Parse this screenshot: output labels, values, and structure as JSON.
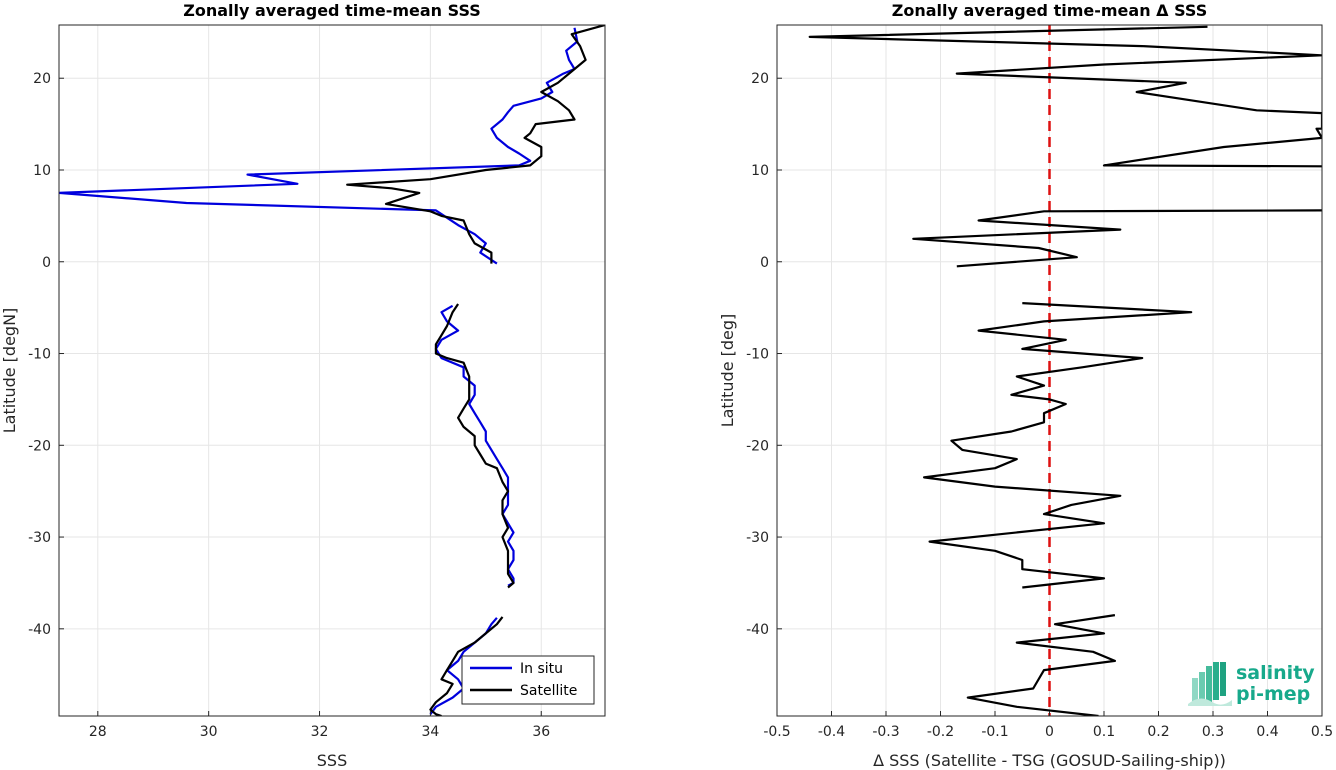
{
  "chart_data": [
    {
      "type": "line",
      "title": "Zonally averaged time-mean SSS",
      "xlabel": "SSS",
      "ylabel": "Latitude [degN]",
      "xlim": [
        27.3,
        37.15
      ],
      "ylim": [
        -49.5,
        25.8
      ],
      "xticks": [
        28,
        30,
        32,
        34,
        36
      ],
      "yticks": [
        -40,
        -30,
        -20,
        -10,
        0,
        10,
        20
      ],
      "grid": true,
      "legend": "bottom-right",
      "series": [
        {
          "name": "In situ",
          "color": "#0000dd",
          "segments": [
            [
              [
                36.6,
                25.5
              ],
              [
                36.65,
                24.0
              ],
              [
                36.45,
                23.0
              ],
              [
                36.5,
                22.0
              ],
              [
                36.6,
                21.0
              ],
              [
                36.4,
                20.5
              ],
              [
                36.1,
                19.5
              ],
              [
                36.2,
                18.5
              ],
              [
                36.0,
                17.8
              ],
              [
                35.5,
                17.0
              ],
              [
                35.4,
                16.3
              ],
              [
                35.3,
                15.5
              ],
              [
                35.1,
                14.5
              ],
              [
                35.2,
                13.5
              ],
              [
                35.4,
                12.5
              ],
              [
                35.6,
                11.8
              ],
              [
                35.8,
                11.0
              ],
              [
                35.6,
                10.5
              ],
              [
                30.7,
                9.5
              ],
              [
                31.6,
                8.5
              ],
              [
                27.3,
                7.5
              ],
              [
                29.6,
                6.4
              ],
              [
                34.1,
                5.6
              ],
              [
                34.5,
                4.0
              ],
              [
                34.8,
                3.0
              ],
              [
                35.0,
                2.0
              ],
              [
                34.9,
                1.0
              ],
              [
                35.2,
                -0.2
              ]
            ],
            [
              [
                34.4,
                -4.8
              ],
              [
                34.2,
                -5.5
              ],
              [
                34.3,
                -6.5
              ],
              [
                34.5,
                -7.5
              ],
              [
                34.2,
                -8.5
              ],
              [
                34.1,
                -9.5
              ],
              [
                34.2,
                -10.5
              ],
              [
                34.6,
                -11.5
              ],
              [
                34.6,
                -12.5
              ],
              [
                34.8,
                -13.5
              ],
              [
                34.8,
                -14.5
              ],
              [
                34.7,
                -15.5
              ],
              [
                34.8,
                -16.5
              ],
              [
                34.9,
                -17.5
              ],
              [
                35.0,
                -18.5
              ],
              [
                35.0,
                -19.5
              ],
              [
                35.1,
                -20.5
              ],
              [
                35.2,
                -21.5
              ],
              [
                35.3,
                -22.5
              ],
              [
                35.4,
                -23.5
              ],
              [
                35.4,
                -24.5
              ],
              [
                35.4,
                -25.5
              ],
              [
                35.4,
                -26.5
              ],
              [
                35.3,
                -27.5
              ],
              [
                35.4,
                -28.5
              ],
              [
                35.5,
                -29.5
              ],
              [
                35.4,
                -30.5
              ],
              [
                35.5,
                -31.5
              ],
              [
                35.5,
                -32.5
              ],
              [
                35.4,
                -33.5
              ],
              [
                35.5,
                -34.5
              ],
              [
                35.5,
                -35.0
              ],
              [
                35.4,
                -35.3
              ]
            ],
            [
              [
                35.2,
                -38.8
              ],
              [
                35.1,
                -39.5
              ],
              [
                35.0,
                -40.5
              ],
              [
                34.8,
                -41.5
              ],
              [
                34.6,
                -42.5
              ],
              [
                34.5,
                -43.5
              ],
              [
                34.3,
                -44.5
              ],
              [
                34.5,
                -45.5
              ],
              [
                34.6,
                -46.5
              ],
              [
                34.4,
                -47.5
              ],
              [
                34.1,
                -48.5
              ],
              [
                34.0,
                -49.3
              ]
            ]
          ]
        },
        {
          "name": "Satellite",
          "color": "#000000",
          "segments": [
            [
              [
                37.15,
                25.8
              ],
              [
                36.55,
                24.8
              ],
              [
                36.7,
                23.5
              ],
              [
                36.8,
                22.0
              ],
              [
                36.5,
                20.5
              ],
              [
                36.3,
                19.5
              ],
              [
                36.0,
                18.5
              ],
              [
                36.3,
                17.5
              ],
              [
                36.5,
                16.5
              ],
              [
                36.6,
                15.5
              ],
              [
                35.9,
                15.0
              ],
              [
                35.8,
                14.0
              ],
              [
                35.7,
                13.5
              ],
              [
                36.0,
                12.5
              ],
              [
                36.0,
                11.5
              ],
              [
                35.8,
                10.5
              ],
              [
                35.0,
                10.0
              ],
              [
                34.0,
                9.0
              ],
              [
                32.5,
                8.4
              ],
              [
                33.3,
                8.0
              ],
              [
                33.8,
                7.5
              ],
              [
                33.2,
                6.3
              ],
              [
                34.0,
                5.5
              ],
              [
                34.2,
                5.0
              ],
              [
                34.6,
                4.5
              ],
              [
                34.7,
                3.0
              ],
              [
                34.8,
                2.0
              ],
              [
                35.1,
                1.0
              ],
              [
                35.1,
                -0.2
              ]
            ],
            [
              [
                34.5,
                -4.6
              ],
              [
                34.4,
                -5.5
              ],
              [
                34.3,
                -7.0
              ],
              [
                34.2,
                -8.0
              ],
              [
                34.1,
                -9.0
              ],
              [
                34.1,
                -10.0
              ],
              [
                34.3,
                -10.5
              ],
              [
                34.6,
                -11.0
              ],
              [
                34.7,
                -12.5
              ],
              [
                34.7,
                -14.0
              ],
              [
                34.7,
                -15.0
              ],
              [
                34.6,
                -16.0
              ],
              [
                34.5,
                -17.0
              ],
              [
                34.6,
                -18.0
              ],
              [
                34.8,
                -19.0
              ],
              [
                34.8,
                -20.0
              ],
              [
                34.9,
                -21.0
              ],
              [
                35.0,
                -22.0
              ],
              [
                35.2,
                -22.5
              ],
              [
                35.3,
                -24.0
              ],
              [
                35.4,
                -25.0
              ],
              [
                35.3,
                -26.0
              ],
              [
                35.3,
                -27.5
              ],
              [
                35.4,
                -29.0
              ],
              [
                35.3,
                -30.0
              ],
              [
                35.4,
                -31.5
              ],
              [
                35.4,
                -33.0
              ],
              [
                35.4,
                -34.0
              ],
              [
                35.5,
                -35.0
              ],
              [
                35.4,
                -35.5
              ]
            ],
            [
              [
                35.3,
                -38.7
              ],
              [
                35.2,
                -39.5
              ],
              [
                35.0,
                -40.5
              ],
              [
                34.8,
                -41.5
              ],
              [
                34.5,
                -42.5
              ],
              [
                34.4,
                -43.5
              ],
              [
                34.3,
                -44.5
              ],
              [
                34.2,
                -45.5
              ],
              [
                34.4,
                -46.0
              ],
              [
                34.3,
                -47.0
              ],
              [
                34.1,
                -48.0
              ],
              [
                34.0,
                -48.8
              ],
              [
                34.1,
                -49.3
              ],
              [
                34.2,
                -49.5
              ]
            ]
          ]
        }
      ]
    },
    {
      "type": "line",
      "title": "Zonally averaged time-mean Δ SSS",
      "xlabel": "Δ SSS (Satellite - TSG (GOSUD-Sailing-ship))",
      "ylabel": "Latitude [deg]",
      "xlim": [
        -0.5,
        0.5
      ],
      "ylim": [
        -49.5,
        25.8
      ],
      "xticks": [
        -0.5,
        -0.4,
        -0.3,
        -0.2,
        -0.1,
        0,
        0.1,
        0.2,
        0.3,
        0.4,
        0.5
      ],
      "xtick_labels": [
        "-0.5",
        "-0.4",
        "-0.3",
        "-0.2",
        "-0.1",
        "0",
        "0.1",
        "0.2",
        "0.3",
        "0.4",
        "0.5"
      ],
      "yticks": [
        -40,
        -30,
        -20,
        -10,
        0,
        10,
        20
      ],
      "grid": true,
      "zero_line_color": "#dd1111",
      "series": [
        {
          "color": "#000000",
          "segments": [
            [
              [
                0.29,
                25.6
              ],
              [
                -0.44,
                24.5
              ],
              [
                0.17,
                23.5
              ],
              [
                0.5,
                22.5
              ],
              [
                0.1,
                21.5
              ],
              [
                -0.17,
                20.5
              ],
              [
                0.25,
                19.5
              ],
              [
                0.16,
                18.5
              ],
              [
                0.27,
                17.5
              ],
              [
                0.38,
                16.5
              ],
              [
                0.5,
                16.2
              ],
              [
                0.5,
                14.5
              ],
              [
                0.49,
                14.5
              ],
              [
                0.5,
                13.5
              ],
              [
                0.32,
                12.5
              ],
              [
                0.1,
                10.5
              ],
              [
                0.5,
                10.4
              ]
            ],
            [
              [
                0.5,
                5.6
              ],
              [
                -0.01,
                5.5
              ],
              [
                -0.13,
                4.5
              ],
              [
                0.13,
                3.5
              ],
              [
                -0.25,
                2.5
              ],
              [
                -0.02,
                1.5
              ],
              [
                0.05,
                0.5
              ],
              [
                -0.17,
                -0.5
              ]
            ],
            [
              [
                -0.05,
                -4.5
              ],
              [
                0.26,
                -5.5
              ],
              [
                -0.01,
                -6.5
              ],
              [
                -0.13,
                -7.5
              ],
              [
                0.03,
                -8.5
              ],
              [
                -0.05,
                -9.5
              ],
              [
                0.17,
                -10.5
              ],
              [
                0.06,
                -11.5
              ],
              [
                -0.06,
                -12.5
              ],
              [
                -0.01,
                -13.5
              ],
              [
                -0.07,
                -14.5
              ],
              [
                0.0,
                -15.0
              ],
              [
                0.03,
                -15.5
              ],
              [
                -0.01,
                -16.5
              ],
              [
                -0.01,
                -17.5
              ],
              [
                -0.07,
                -18.5
              ],
              [
                -0.18,
                -19.5
              ],
              [
                -0.16,
                -20.5
              ],
              [
                -0.06,
                -21.5
              ],
              [
                -0.1,
                -22.5
              ],
              [
                -0.23,
                -23.5
              ],
              [
                -0.1,
                -24.5
              ],
              [
                0.13,
                -25.5
              ],
              [
                0.04,
                -26.5
              ],
              [
                -0.01,
                -27.5
              ],
              [
                0.1,
                -28.5
              ],
              [
                -0.22,
                -30.5
              ],
              [
                -0.1,
                -31.5
              ],
              [
                -0.05,
                -32.5
              ],
              [
                -0.05,
                -33.5
              ],
              [
                0.1,
                -34.5
              ],
              [
                -0.05,
                -35.5
              ]
            ],
            [
              [
                0.12,
                -38.5
              ],
              [
                0.01,
                -39.5
              ],
              [
                0.1,
                -40.5
              ],
              [
                -0.06,
                -41.5
              ],
              [
                0.08,
                -42.5
              ],
              [
                0.12,
                -43.5
              ],
              [
                -0.01,
                -44.5
              ],
              [
                -0.03,
                -46.5
              ],
              [
                -0.15,
                -47.5
              ],
              [
                -0.06,
                -48.5
              ],
              [
                0.09,
                -49.5
              ]
            ]
          ]
        }
      ]
    }
  ],
  "legend": {
    "in_situ": "In situ",
    "satellite": "Satellite",
    "in_situ_color": "#0000dd",
    "satellite_color": "#000000"
  },
  "logo": {
    "line1": "salinity",
    "line2": "pi-mep",
    "icon": "wave-bars-icon",
    "color": "#17a98b"
  }
}
